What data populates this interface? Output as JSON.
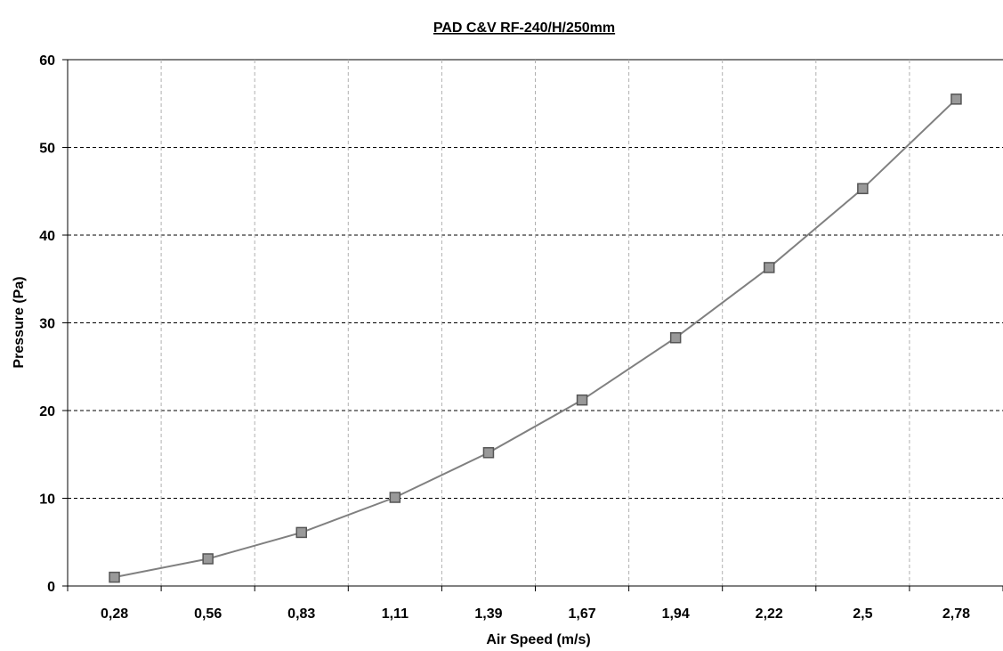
{
  "chart_data": {
    "type": "line",
    "title": "PAD C&V RF-240/H/250mm",
    "xlabel": "Air Speed (m/s)",
    "ylabel": "Pressure (Pa)",
    "categories": [
      "0,28",
      "0,56",
      "0,83",
      "1,11",
      "1,39",
      "1,67",
      "1,94",
      "2,22",
      "2,5",
      "2,78"
    ],
    "series": [
      {
        "values": [
          1.0,
          3.1,
          6.1,
          10.1,
          15.2,
          21.2,
          28.3,
          36.3,
          45.3,
          55.5
        ],
        "color": "#808080",
        "marker": "square"
      }
    ],
    "ylim": [
      0,
      60
    ],
    "yticks": [
      0,
      10,
      20,
      30,
      40,
      50,
      60
    ],
    "grid": {
      "horizontal": "dashed",
      "vertical": "dashed"
    },
    "legend": "none"
  }
}
